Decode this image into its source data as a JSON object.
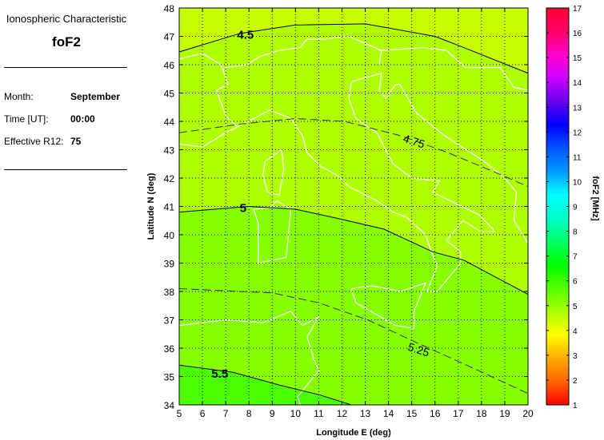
{
  "info_panel": {
    "heading": "Ionospheric Characteristic",
    "parameter": "foF2",
    "fields": [
      {
        "label": "Month:",
        "value": "September"
      },
      {
        "label": "Time [UT]:",
        "value": "00:00"
      },
      {
        "label": "Effective R12:",
        "value": "75"
      }
    ]
  },
  "chart_data": {
    "type": "contour-map",
    "xlabel": "Longitude E (deg)",
    "ylabel": "Latitude N (deg)",
    "xlim": [
      5,
      20
    ],
    "ylim": [
      34,
      48
    ],
    "x_ticks": [
      "5",
      "6",
      "7",
      "8",
      "9",
      "10",
      "11",
      "12",
      "13",
      "14",
      "15",
      "16",
      "17",
      "18",
      "19",
      "20"
    ],
    "y_ticks": [
      "34",
      "35",
      "36",
      "37",
      "38",
      "39",
      "40",
      "41",
      "42",
      "43",
      "44",
      "45",
      "46",
      "47",
      "48"
    ],
    "grid": true,
    "coastlines_color": "#ffffff",
    "fill_bands": [
      {
        "range": [
          4.25,
          4.5
        ],
        "color": "#c8ff00"
      },
      {
        "range": [
          4.5,
          5.0
        ],
        "color": "#b0ff00"
      },
      {
        "range": [
          5.0,
          5.5
        ],
        "color": "#88ff00"
      },
      {
        "range": [
          5.5,
          5.75
        ],
        "color": "#4cff00"
      }
    ],
    "contours": [
      {
        "level": "4.5",
        "style": "solid",
        "points": [
          [
            5,
            46.45
          ],
          [
            7.6,
            47.1
          ],
          [
            10,
            47.4
          ],
          [
            13,
            47.44
          ],
          [
            16,
            47.0
          ],
          [
            17.25,
            46.6
          ],
          [
            20,
            45.7
          ]
        ],
        "label_at": [
          7.85,
          47.05
        ]
      },
      {
        "level": "4.75",
        "style": "dashed",
        "points": [
          [
            5,
            43.6
          ],
          [
            7.6,
            43.9
          ],
          [
            10,
            44.1
          ],
          [
            12.1,
            44.0
          ],
          [
            14.5,
            43.5
          ],
          [
            16.55,
            42.9
          ],
          [
            18.6,
            42.2
          ],
          [
            20,
            41.7
          ]
        ],
        "label_at": [
          15.1,
          43.3
        ]
      },
      {
        "level": "5",
        "style": "solid",
        "points": [
          [
            5,
            40.8
          ],
          [
            8,
            41.0
          ],
          [
            10,
            40.9
          ],
          [
            11.7,
            40.6
          ],
          [
            13.8,
            40.2
          ],
          [
            15.9,
            39.4
          ],
          [
            17.25,
            39.1
          ],
          [
            20,
            37.9
          ]
        ],
        "label_at": [
          7.75,
          40.95
        ]
      },
      {
        "level": "5.25",
        "style": "dashed",
        "points": [
          [
            5,
            38.1
          ],
          [
            7.6,
            38.0
          ],
          [
            9,
            37.95
          ],
          [
            11,
            37.6
          ],
          [
            13.1,
            37.0
          ],
          [
            15.2,
            36.2
          ],
          [
            17.9,
            35.2
          ],
          [
            20,
            34.4
          ]
        ],
        "label_at": [
          15.3,
          35.95
        ]
      },
      {
        "level": "5.5",
        "style": "solid",
        "points": [
          [
            5,
            35.4
          ],
          [
            7.3,
            35.15
          ],
          [
            9.3,
            34.7
          ],
          [
            11.05,
            34.35
          ],
          [
            12.4,
            34.0
          ]
        ],
        "label_at": [
          6.75,
          35.1
        ]
      }
    ],
    "colorbar": {
      "label": "foF2 [MHz]",
      "range": [
        1,
        17
      ],
      "ticks": [
        "1",
        "2",
        "3",
        "4",
        "5",
        "6",
        "7",
        "8",
        "9",
        "10",
        "11",
        "12",
        "13",
        "14",
        "15",
        "16",
        "17"
      ],
      "colors": [
        "#ff0000",
        "#ff6600",
        "#ffaa00",
        "#ffff00",
        "#aaff00",
        "#55ff00",
        "#00ff00",
        "#00ff66",
        "#00ffcc",
        "#00ffff",
        "#0099ff",
        "#0055ff",
        "#0000ff",
        "#6600ee",
        "#cc00ff",
        "#ff00cc",
        "#ff0066",
        "#ff0033"
      ]
    }
  }
}
